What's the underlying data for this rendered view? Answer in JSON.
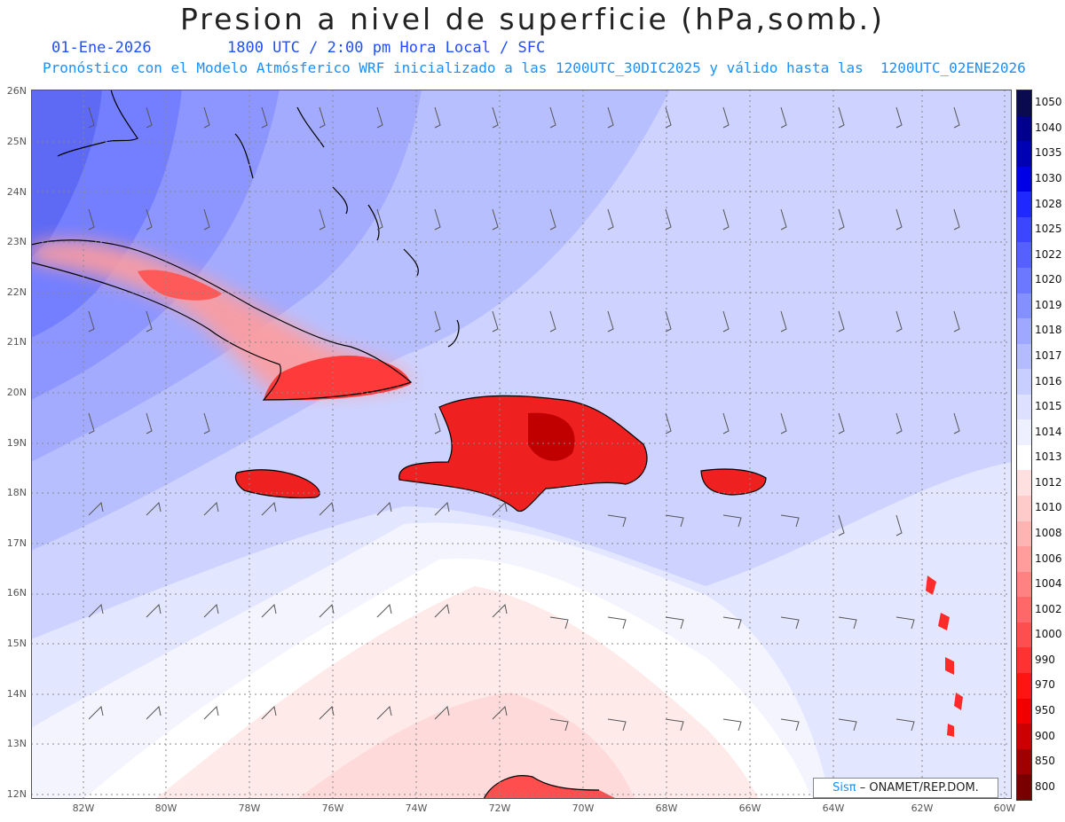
{
  "title": "Presion a nivel de superficie (hPa,somb.)",
  "date": "01-Ene-2026",
  "time": "1800 UTC / 2:00 pm Hora Local / SFC",
  "forecast": "Pronóstico con el Modelo Atmósferico WRF inicializado a las 1200UTC_30DIC2025 y válido hasta las  1200UTC_02ENE2026",
  "lat_labels": [
    "26N",
    "25N",
    "24N",
    "23N",
    "22N",
    "21N",
    "20N",
    "19N",
    "18N",
    "17N",
    "16N",
    "15N",
    "14N",
    "13N",
    "12N"
  ],
  "lon_labels": [
    "82W",
    "80W",
    "78W",
    "76W",
    "74W",
    "72W",
    "70W",
    "68W",
    "66W",
    "64W",
    "62W",
    "60W"
  ],
  "colorbar": {
    "labels": [
      "1050",
      "1040",
      "1035",
      "1030",
      "1028",
      "1025",
      "1022",
      "1020",
      "1019",
      "1018",
      "1017",
      "1016",
      "1015",
      "1014",
      "1013",
      "1012",
      "1010",
      "1008",
      "1006",
      "1004",
      "1002",
      "1000",
      "990",
      "970",
      "950",
      "900",
      "850",
      "800"
    ],
    "colors": [
      "#0a0a50",
      "#00008c",
      "#0000b4",
      "#0000e6",
      "#1e28ff",
      "#3c46ff",
      "#5560ff",
      "#6c78ff",
      "#8590ff",
      "#9ea8ff",
      "#b4bcff",
      "#c8ceff",
      "#dde1ff",
      "#eef0ff",
      "#ffffff",
      "#ffe0e0",
      "#ffcaca",
      "#ffb4b4",
      "#ff9c9c",
      "#ff8282",
      "#ff6868",
      "#ff4e4e",
      "#ff3232",
      "#ff1414",
      "#f00000",
      "#cc0000",
      "#a00000",
      "#780000"
    ]
  },
  "credit": {
    "brand": "Sisπ",
    "text": "– ONAMET/REP.DOM."
  }
}
